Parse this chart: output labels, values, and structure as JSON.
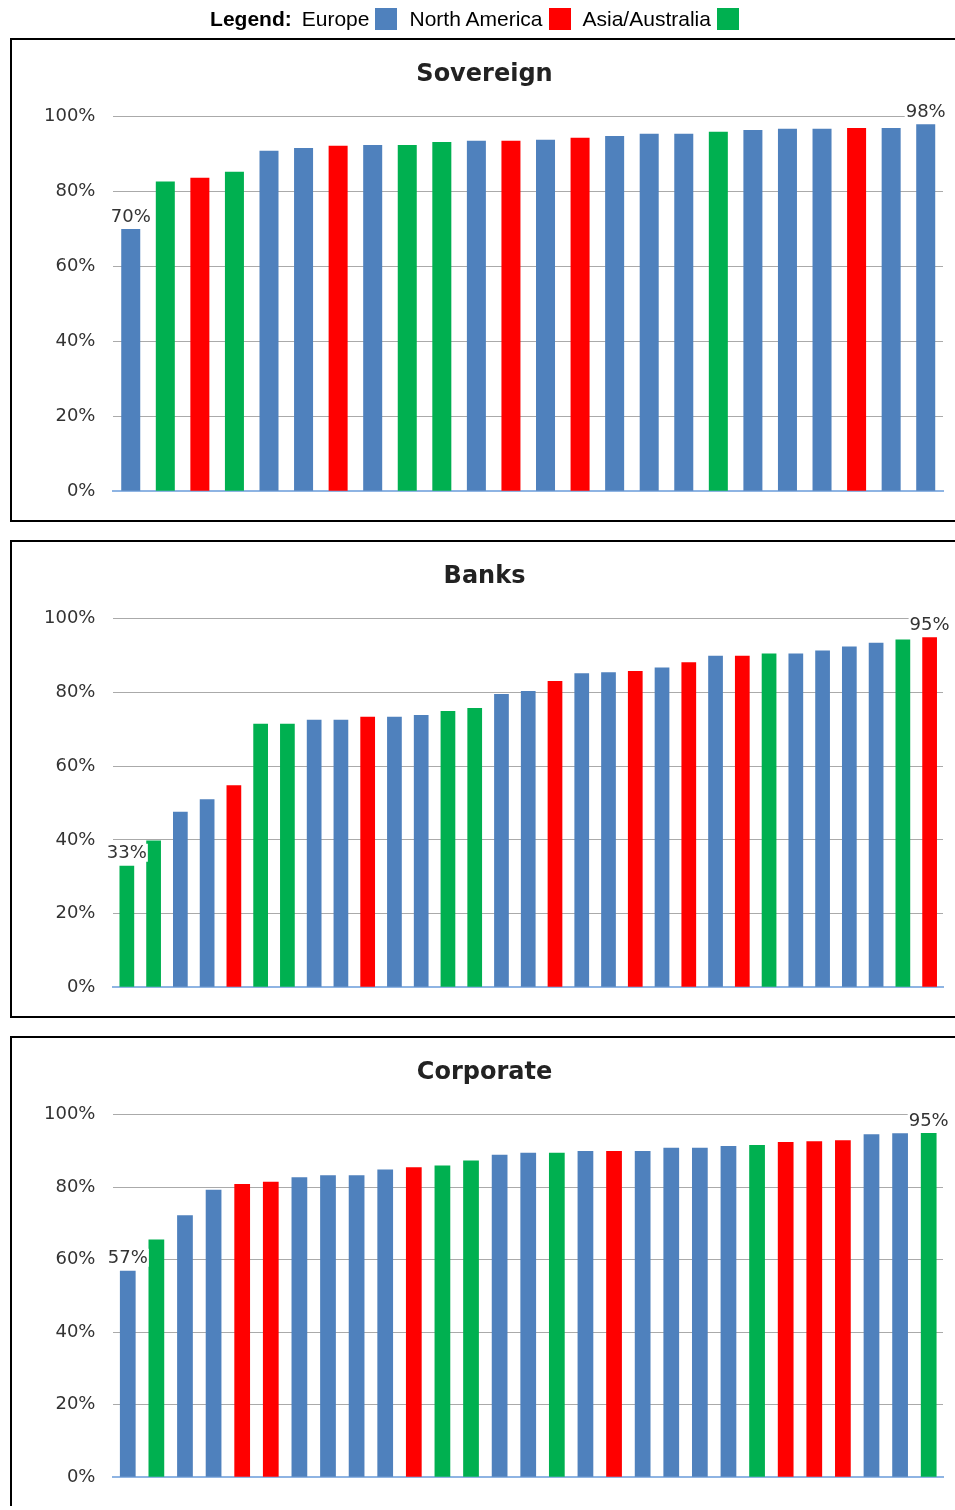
{
  "chart_data": [
    {
      "type": "bar",
      "title": "Sovereign",
      "legend": "top",
      "legend_title": "Legend:",
      "categories": [
        null,
        null,
        null,
        null,
        null,
        null,
        null,
        null,
        null,
        null,
        null,
        null,
        null,
        null,
        null,
        null,
        null,
        null,
        null,
        null,
        null,
        null,
        null,
        null
      ],
      "ylim": [
        0,
        100
      ],
      "yticks": [
        {
          "value": 0,
          "label": "0%"
        },
        {
          "value": 20,
          "label": "20%"
        },
        {
          "value": 40,
          "label": "40%"
        },
        {
          "value": 60,
          "label": "60%"
        },
        {
          "value": 80,
          "label": "80%"
        },
        {
          "value": 100,
          "label": "100%"
        }
      ],
      "grid": "y",
      "tick_labels": "y",
      "series": [
        {
          "name": "Europe",
          "color": "#4f81bd",
          "values": [
            70,
            null,
            null,
            null,
            90.9,
            91.7,
            null,
            92.5,
            null,
            null,
            93.6,
            null,
            93.9,
            null,
            94.9,
            95.5,
            95.5,
            null,
            96.5,
            96.8,
            96.8,
            null,
            97,
            98
          ],
          "value_labels": [
            "70%",
            null,
            null,
            null,
            null,
            null,
            null,
            null,
            null,
            null,
            null,
            null,
            null,
            null,
            null,
            null,
            null,
            null,
            null,
            null,
            null,
            null,
            null,
            "98%"
          ]
        },
        {
          "name": "North America",
          "color": "#ff0000",
          "values": [
            null,
            null,
            83.7,
            null,
            null,
            null,
            92.3,
            null,
            null,
            null,
            null,
            93.6,
            null,
            94.4,
            null,
            null,
            null,
            null,
            null,
            null,
            null,
            97,
            null,
            null
          ]
        },
        {
          "name": "Asia/Australia",
          "color": "#00b050",
          "values": [
            null,
            82.7,
            null,
            85.3,
            null,
            null,
            null,
            null,
            92.5,
            93.3,
            null,
            null,
            null,
            null,
            null,
            null,
            null,
            96,
            null,
            null,
            null,
            null,
            null,
            null
          ]
        }
      ]
    },
    {
      "type": "bar",
      "title": "Banks",
      "categories": [
        null,
        null,
        null,
        null,
        null,
        null,
        null,
        null,
        null,
        null,
        null,
        null,
        null,
        null,
        null,
        null,
        null,
        null,
        null,
        null,
        null,
        null,
        null,
        null,
        null,
        null,
        null,
        null,
        null,
        null,
        null
      ],
      "ylim": [
        0,
        100
      ],
      "yticks": [
        {
          "value": 0,
          "label": "0%"
        },
        {
          "value": 20,
          "label": "20%"
        },
        {
          "value": 40,
          "label": "40%"
        },
        {
          "value": 60,
          "label": "60%"
        },
        {
          "value": 80,
          "label": "80%"
        },
        {
          "value": 100,
          "label": "100%"
        }
      ],
      "grid": "y",
      "tick_labels": "y",
      "series": [
        {
          "name": "Europe",
          "color": "#4f81bd",
          "values": [
            null,
            null,
            47.6,
            51,
            null,
            null,
            null,
            72.6,
            72.6,
            null,
            73.4,
            73.9,
            null,
            null,
            79.6,
            80.4,
            null,
            85.2,
            85.5,
            null,
            86.8,
            null,
            90,
            null,
            null,
            90.6,
            91.4,
            92.5,
            93.5,
            null,
            null
          ]
        },
        {
          "name": "North America",
          "color": "#ff0000",
          "values": [
            null,
            null,
            null,
            null,
            54.8,
            null,
            null,
            null,
            null,
            73.4,
            null,
            null,
            null,
            null,
            null,
            null,
            83.1,
            null,
            null,
            85.8,
            null,
            88.2,
            null,
            90,
            null,
            null,
            null,
            null,
            null,
            null,
            95
          ],
          "value_labels": [
            null,
            null,
            null,
            null,
            null,
            null,
            null,
            null,
            null,
            null,
            null,
            null,
            null,
            null,
            null,
            null,
            null,
            null,
            null,
            null,
            null,
            null,
            null,
            null,
            null,
            null,
            null,
            null,
            null,
            null,
            "95%"
          ]
        },
        {
          "name": "Asia/Australia",
          "color": "#00b050",
          "values": [
            33,
            39.8,
            null,
            null,
            null,
            71.5,
            71.5,
            null,
            null,
            null,
            null,
            null,
            75,
            75.8,
            null,
            null,
            null,
            null,
            null,
            null,
            null,
            null,
            null,
            null,
            90.6,
            null,
            null,
            null,
            null,
            94.4,
            null
          ],
          "value_labels": [
            "33%",
            null,
            null,
            null,
            null,
            null,
            null,
            null,
            null,
            null,
            null,
            null,
            null,
            null,
            null,
            null,
            null,
            null,
            null,
            null,
            null,
            null,
            null,
            null,
            null,
            null,
            null,
            null,
            null,
            null,
            null
          ]
        }
      ]
    },
    {
      "type": "bar",
      "title": "Corporate",
      "categories": [
        null,
        null,
        null,
        null,
        null,
        null,
        null,
        null,
        null,
        null,
        null,
        null,
        null,
        null,
        null,
        null,
        null,
        null,
        null,
        null,
        null,
        null,
        null,
        null,
        null,
        null,
        null,
        null,
        null
      ],
      "ylim": [
        0,
        100
      ],
      "yticks": [
        {
          "value": 0,
          "label": "0%"
        },
        {
          "value": 20,
          "label": "20%"
        },
        {
          "value": 40,
          "label": "40%"
        },
        {
          "value": 60,
          "label": "60%"
        },
        {
          "value": 80,
          "label": "80%"
        },
        {
          "value": 100,
          "label": "100%"
        }
      ],
      "grid": "y",
      "tick_labels": "y",
      "series": [
        {
          "name": "Europe",
          "color": "#4f81bd",
          "values": [
            57,
            null,
            72.3,
            79.3,
            null,
            null,
            82.8,
            83.3,
            83.3,
            84.9,
            null,
            null,
            null,
            89,
            89.5,
            null,
            90,
            null,
            90,
            90.9,
            90.9,
            91.4,
            null,
            null,
            null,
            null,
            94.6,
            94.9,
            null
          ],
          "value_labels": [
            "57%",
            null,
            null,
            null,
            null,
            null,
            null,
            null,
            null,
            null,
            null,
            null,
            null,
            null,
            null,
            null,
            null,
            null,
            null,
            null,
            null,
            null,
            null,
            null,
            null,
            null,
            null,
            null,
            null
          ]
        },
        {
          "name": "North America",
          "color": "#ff0000",
          "values": [
            null,
            null,
            null,
            null,
            80.9,
            81.5,
            null,
            null,
            null,
            null,
            85.5,
            null,
            null,
            null,
            null,
            null,
            null,
            90,
            null,
            null,
            null,
            null,
            null,
            92.5,
            92.7,
            93,
            null,
            null,
            null
          ]
        },
        {
          "name": "Asia/Australia",
          "color": "#00b050",
          "values": [
            null,
            65.6,
            null,
            null,
            null,
            null,
            null,
            null,
            null,
            null,
            null,
            86,
            87.4,
            null,
            null,
            89.5,
            null,
            null,
            null,
            null,
            null,
            null,
            91.7,
            null,
            null,
            null,
            null,
            null,
            95
          ],
          "value_labels": [
            null,
            null,
            null,
            null,
            null,
            null,
            null,
            null,
            null,
            null,
            null,
            null,
            null,
            null,
            null,
            null,
            null,
            null,
            null,
            null,
            null,
            null,
            null,
            null,
            null,
            null,
            null,
            null,
            "95%"
          ]
        }
      ]
    }
  ]
}
